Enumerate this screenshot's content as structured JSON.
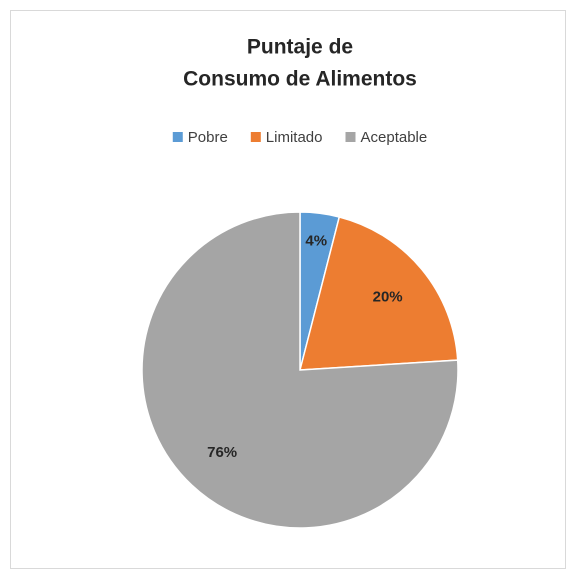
{
  "chart_data": {
    "type": "pie",
    "title": [
      "Puntaje de",
      "Consumo de Alimentos"
    ],
    "categories": [
      "Pobre",
      "Limitado",
      "Aceptable"
    ],
    "values": [
      4,
      20,
      76
    ],
    "value_labels": [
      "4%",
      "20%",
      "76%"
    ],
    "colors": [
      "#5b9bd5",
      "#ed7d31",
      "#a5a5a5"
    ],
    "legend": "top"
  }
}
